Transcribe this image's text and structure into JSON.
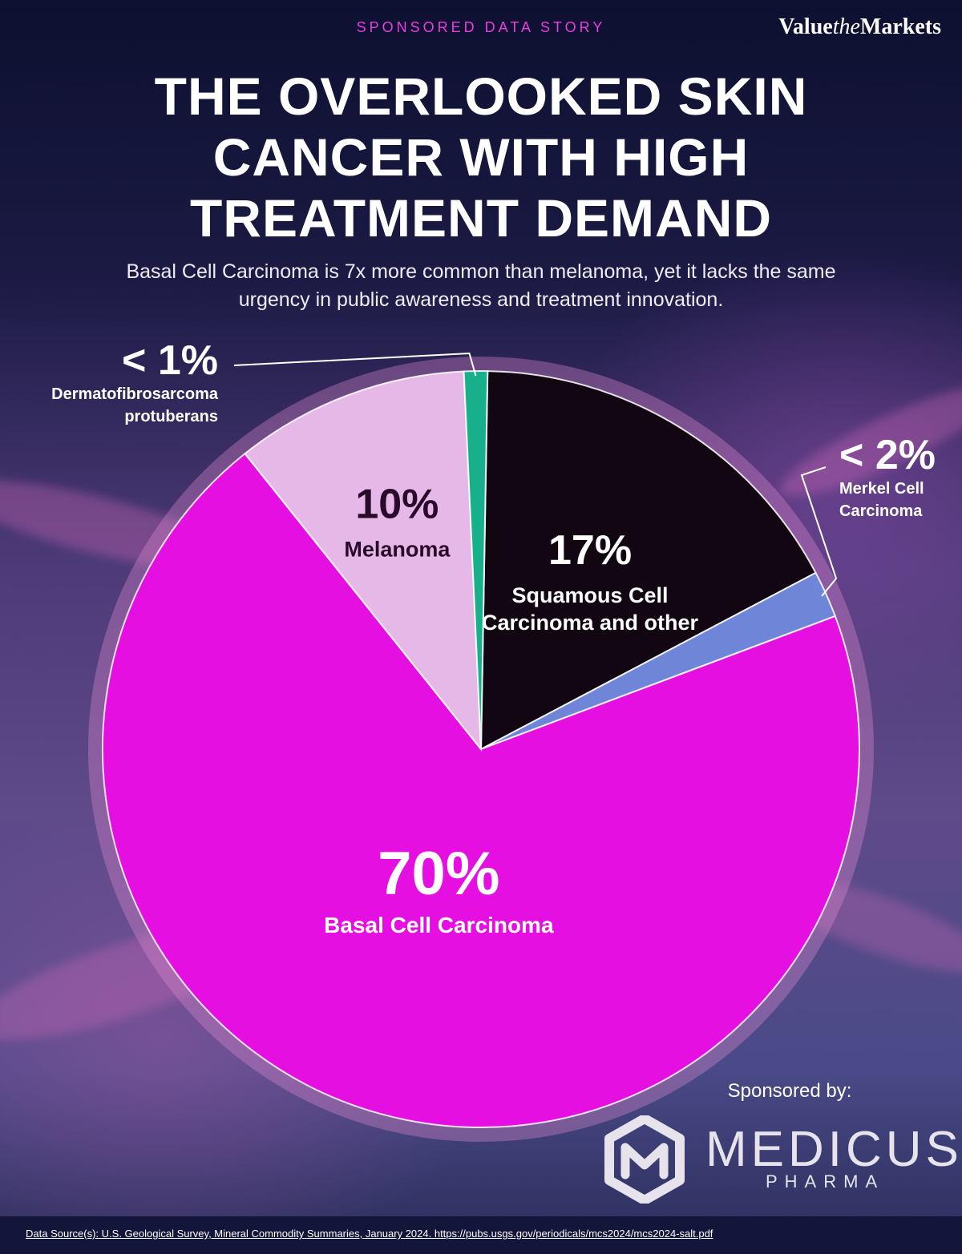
{
  "header": {
    "tag": "SPONSORED DATA STORY",
    "brand_a": "Value",
    "brand_b": "the",
    "brand_c": "Markets"
  },
  "headline": {
    "line1": "THE OVERLOOKED SKIN",
    "line2": "CANCER WITH HIGH",
    "line3": "TREATMENT DEMAND"
  },
  "subtitle": {
    "line1": "Basal Cell Carcinoma is 7x more common than melanoma, yet it lacks the same",
    "line2": "urgency in public awareness and treatment innovation."
  },
  "chart_data": {
    "type": "pie",
    "slices": [
      {
        "label": "Squamous Cell Carcinoma and other",
        "label_lines": [
          "Squamous Cell",
          "Carcinoma and other"
        ],
        "value": 17,
        "display": "17%",
        "color": "#120612"
      },
      {
        "label": "Merkel Cell Carcinoma",
        "label_lines": [
          "Merkel Cell",
          "Carcinoma"
        ],
        "value": 2,
        "display": "< 2%",
        "color": "#6f86d8"
      },
      {
        "label": "Basal Cell Carcinoma",
        "label_lines": [
          "Basal Cell Carcinoma"
        ],
        "value": 70,
        "display": "70%",
        "color": "#e40fe0"
      },
      {
        "label": "Melanoma",
        "label_lines": [
          "Melanoma"
        ],
        "value": 10,
        "display": "10%",
        "color": "#e6b8e8"
      },
      {
        "label": "Dermatofibrosarcoma protuberans",
        "label_lines": [
          "Dermatofibrosarcoma",
          "protuberans"
        ],
        "value": 1,
        "display": "< 1%",
        "color": "#18b08a"
      }
    ]
  },
  "sponsor": {
    "label": "Sponsored by:",
    "name": "MEDICUS",
    "sub": "PHARMA"
  },
  "footer": {
    "source": "Data Source(s): U.S. Geological Survey, Mineral Commodity Summaries, January 2024.  https://pubs.usgs.gov/periodicals/mcs2024/mcs2024-salt.pdf"
  }
}
